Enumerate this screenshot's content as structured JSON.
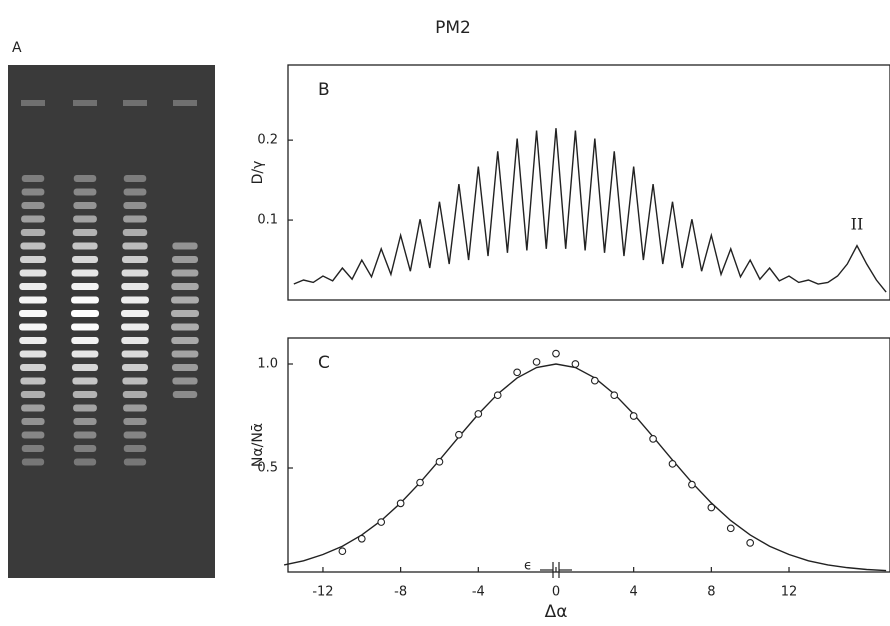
{
  "title": "PM2",
  "gel_label": "A",
  "chart_data": [
    {
      "type": "line",
      "label": "B",
      "ylabel": "D/γ",
      "annotation": "II",
      "xlim": [
        -13.8,
        17.2
      ],
      "ylim": [
        0,
        0.294
      ],
      "yticks": [
        0.1,
        0.2
      ],
      "x": [
        -13.5,
        -13,
        -12.5,
        -12,
        -11.5,
        -11,
        -10.5,
        -10,
        -9.5,
        -9,
        -8.5,
        -8,
        -7.5,
        -7,
        -6.5,
        -6,
        -5.5,
        -5,
        -4.5,
        -4,
        -3.5,
        -3,
        -2.5,
        -2,
        -1.5,
        -1,
        -0.5,
        0,
        0.5,
        1,
        1.5,
        2,
        2.5,
        3,
        3.5,
        4,
        4.5,
        5,
        5.5,
        6,
        6.5,
        7,
        7.5,
        8,
        8.5,
        9,
        9.5,
        10,
        10.5,
        11,
        11.5,
        12,
        12.5,
        13,
        13.5,
        14,
        14.5,
        15,
        15.5,
        16,
        16.5,
        17
      ],
      "series": [
        {
          "color": "#222222",
          "values": [
            0.02,
            0.025,
            0.022,
            0.03,
            0.024,
            0.04,
            0.026,
            0.05,
            0.029,
            0.064,
            0.032,
            0.081,
            0.036,
            0.101,
            0.04,
            0.123,
            0.045,
            0.145,
            0.05,
            0.167,
            0.055,
            0.186,
            0.059,
            0.202,
            0.062,
            0.212,
            0.064,
            0.215,
            0.064,
            0.212,
            0.062,
            0.202,
            0.059,
            0.186,
            0.055,
            0.167,
            0.05,
            0.145,
            0.045,
            0.123,
            0.04,
            0.101,
            0.036,
            0.081,
            0.032,
            0.064,
            0.029,
            0.05,
            0.026,
            0.04,
            0.024,
            0.03,
            0.022,
            0.025,
            0.02,
            0.022,
            0.03,
            0.045,
            0.068,
            0.045,
            0.025,
            0.01
          ]
        }
      ]
    },
    {
      "type": "scatter",
      "label": "C",
      "ylabel": "Nα/Nᾱ",
      "xlabel": "Δα",
      "annotation": "ϵ",
      "xlim": [
        -13.8,
        17.2
      ],
      "ylim": [
        0,
        1.125
      ],
      "xticks": [
        -12,
        -8,
        -4,
        0,
        4,
        8,
        12
      ],
      "yticks": [
        0.5,
        {
          "value": 1,
          "label": "1.0"
        }
      ],
      "x": [
        -11,
        -10,
        -9,
        -8,
        -7,
        -6,
        -5,
        -4,
        -3,
        -2,
        -1,
        0,
        1,
        2,
        3,
        4,
        5,
        6,
        7,
        8,
        9,
        10
      ],
      "values": [
        0.1,
        0.16,
        0.24,
        0.33,
        0.43,
        0.53,
        0.66,
        0.76,
        0.85,
        0.96,
        1.01,
        1.05,
        1.0,
        0.92,
        0.85,
        0.75,
        0.64,
        0.52,
        0.42,
        0.31,
        0.21,
        0.14
      ],
      "curve": {
        "x": [
          -14,
          -13,
          -12,
          -11,
          -10,
          -9,
          -8,
          -7,
          -6,
          -5,
          -4,
          -3,
          -2,
          -1,
          0,
          1,
          2,
          3,
          4,
          5,
          6,
          7,
          8,
          9,
          10,
          11,
          12,
          13,
          14,
          15,
          16,
          17
        ],
        "values": [
          0.034,
          0.054,
          0.084,
          0.124,
          0.178,
          0.247,
          0.332,
          0.43,
          0.538,
          0.65,
          0.759,
          0.856,
          0.933,
          0.983,
          1.0,
          0.983,
          0.933,
          0.856,
          0.759,
          0.65,
          0.538,
          0.43,
          0.332,
          0.247,
          0.178,
          0.124,
          0.084,
          0.054,
          0.034,
          0.021,
          0.012,
          0.007
        ]
      }
    }
  ]
}
